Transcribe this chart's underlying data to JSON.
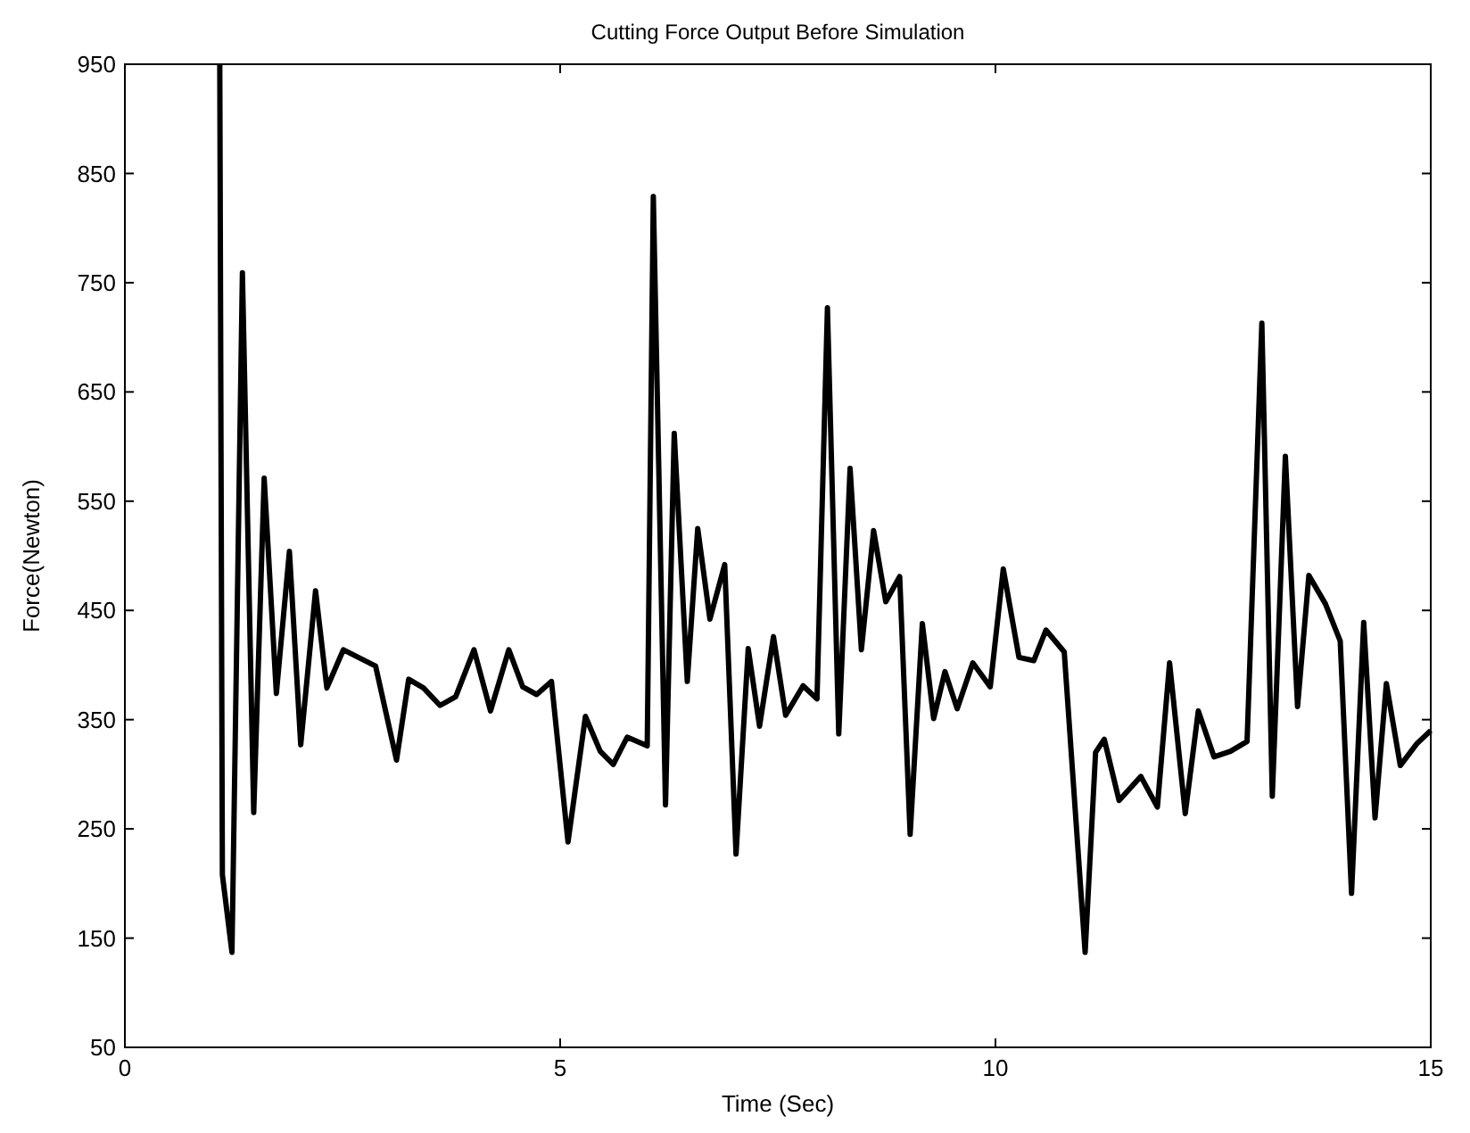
{
  "chart_data": {
    "type": "line",
    "title": "Cutting Force Output Before Simulation",
    "xlabel": "Time (Sec)",
    "ylabel": "Force(Newton)",
    "xlim": [
      0,
      15
    ],
    "xticks": [
      0,
      5,
      10,
      15
    ],
    "ylim": [
      50,
      950
    ],
    "yticks": [
      50,
      150,
      250,
      350,
      450,
      550,
      650,
      750,
      850,
      950
    ],
    "grid": false,
    "marker": "none",
    "line_style": "solid",
    "series": [
      {
        "color": "#000000",
        "x": [
          1.09,
          1.12,
          1.23,
          1.35,
          1.48,
          1.6,
          1.74,
          1.89,
          2.02,
          2.19,
          2.32,
          2.51,
          2.88,
          3.12,
          3.26,
          3.43,
          3.62,
          3.8,
          4.01,
          4.2,
          4.41,
          4.57,
          4.73,
          4.9,
          5.09,
          5.29,
          5.46,
          5.61,
          5.77,
          6.0,
          6.07,
          6.21,
          6.31,
          6.46,
          6.58,
          6.72,
          6.89,
          7.02,
          7.16,
          7.29,
          7.45,
          7.59,
          7.79,
          7.95,
          8.07,
          8.2,
          8.33,
          8.46,
          8.6,
          8.74,
          8.9,
          9.02,
          9.16,
          9.29,
          9.42,
          9.56,
          9.74,
          9.94,
          10.09,
          10.27,
          10.44,
          10.58,
          10.79,
          11.03,
          11.15,
          11.25,
          11.42,
          11.67,
          11.86,
          12.0,
          12.18,
          12.33,
          12.51,
          12.7,
          12.89,
          13.06,
          13.18,
          13.33,
          13.47,
          13.6,
          13.79,
          13.96,
          14.09,
          14.23,
          14.36,
          14.49,
          14.65,
          14.84,
          15.0
        ],
        "values": [
          950,
          208,
          137,
          759,
          265,
          571,
          374,
          504,
          327,
          468,
          379,
          414,
          399,
          313,
          387,
          379,
          363,
          371,
          414,
          358,
          414,
          380,
          373,
          385,
          238,
          353,
          321,
          309,
          334,
          326,
          829,
          272,
          612,
          385,
          525,
          442,
          492,
          227,
          415,
          344,
          426,
          354,
          381,
          369,
          727,
          337,
          580,
          414,
          523,
          458,
          481,
          245,
          438,
          351,
          394,
          360,
          402,
          380,
          488,
          407,
          404,
          432,
          412,
          137,
          320,
          332,
          276,
          298,
          270,
          402,
          264,
          358,
          316,
          321,
          330,
          713,
          280,
          591,
          362,
          482,
          456,
          422,
          191,
          439,
          260,
          383,
          308,
          328,
          340
        ]
      }
    ]
  }
}
